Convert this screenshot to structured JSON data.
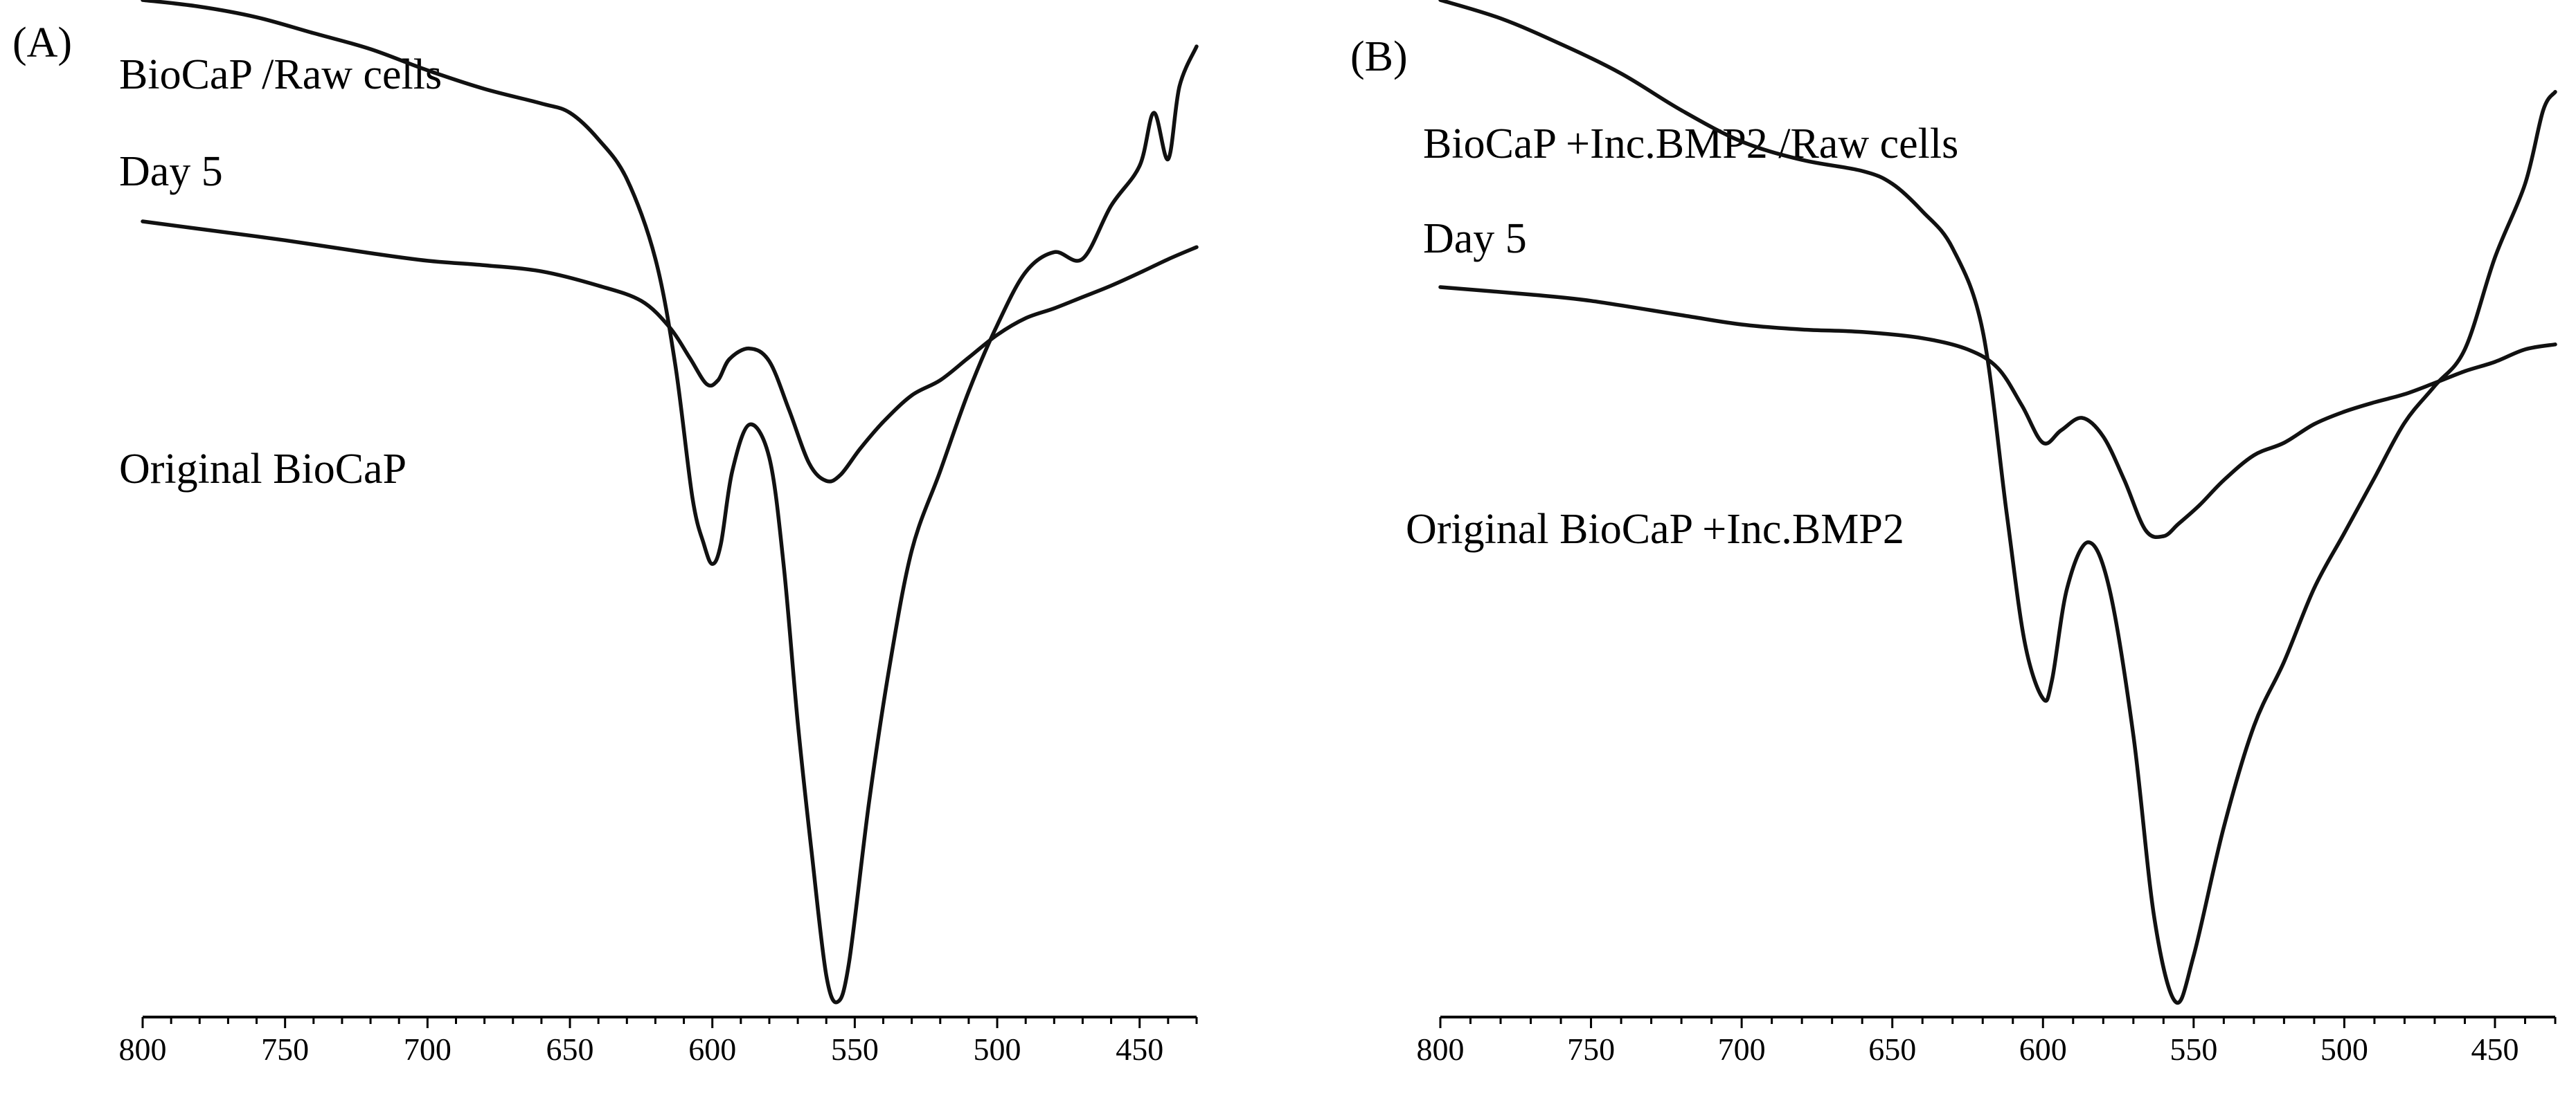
{
  "chart_data": [
    {
      "panel": "(A)",
      "type": "line",
      "xlim": [
        800,
        430
      ],
      "xticks": [
        800,
        750,
        700,
        650,
        600,
        550,
        500,
        450
      ],
      "xtick_labels": [
        "800",
        "750",
        "700",
        "650",
        "600",
        "550",
        "500",
        "450"
      ],
      "grid": false,
      "series": [
        {
          "name": "BioCaP /Raw cells",
          "subtitle": "Day 5",
          "x": [
            800,
            780,
            750,
            720,
            700,
            680,
            660,
            640,
            625,
            615,
            608,
            602,
            598,
            594,
            587,
            580,
            573,
            566,
            560,
            555,
            548,
            540,
            530,
            520,
            510,
            500,
            490,
            480,
            470,
            460,
            450,
            440,
            430
          ],
          "y": [
            0.84,
            0.83,
            0.815,
            0.798,
            0.788,
            0.782,
            0.774,
            0.755,
            0.735,
            0.7,
            0.66,
            0.625,
            0.63,
            0.658,
            0.672,
            0.655,
            0.59,
            0.52,
            0.497,
            0.505,
            0.54,
            0.575,
            0.61,
            0.63,
            0.66,
            0.69,
            0.712,
            0.725,
            0.74,
            0.755,
            0.772,
            0.79,
            0.806
          ]
        },
        {
          "name": "Original BioCaP",
          "x": [
            800,
            780,
            760,
            740,
            720,
            700,
            680,
            660,
            650,
            640,
            630,
            620,
            613,
            607,
            603,
            600,
            597,
            593,
            587,
            580,
            575,
            570,
            565,
            560,
            556,
            552,
            545,
            538,
            530,
            520,
            510,
            500,
            490,
            480,
            470,
            460,
            450,
            445,
            440,
            436,
            430
          ],
          "y": [
            0.795,
            0.79,
            0.782,
            0.77,
            0.758,
            0.742,
            0.728,
            0.717,
            0.71,
            0.69,
            0.66,
            0.6,
            0.52,
            0.42,
            0.385,
            0.37,
            0.385,
            0.44,
            0.475,
            0.45,
            0.37,
            0.25,
            0.15,
            0.06,
            0.04,
            0.07,
            0.19,
            0.29,
            0.38,
            0.44,
            0.5,
            0.55,
            0.59,
            0.605,
            0.6,
            0.64,
            0.67,
            0.71,
            0.675,
            0.73,
            0.76
          ]
        }
      ]
    },
    {
      "panel": "(B)",
      "type": "line",
      "xlim": [
        800,
        430
      ],
      "xticks": [
        800,
        750,
        700,
        650,
        600,
        550,
        500,
        450
      ],
      "xtick_labels": [
        "800",
        "750",
        "700",
        "650",
        "600",
        "550",
        "500",
        "450"
      ],
      "grid": false,
      "series": [
        {
          "name": "BioCaP +Inc.BMP2 /Raw cells",
          "subtitle": "Day 5",
          "x": [
            800,
            770,
            750,
            720,
            700,
            680,
            660,
            640,
            625,
            615,
            607,
            600,
            594,
            587,
            580,
            573,
            566,
            560,
            555,
            548,
            540,
            530,
            520,
            510,
            500,
            490,
            480,
            470,
            460,
            450,
            440,
            430
          ],
          "y": [
            0.75,
            0.738,
            0.728,
            0.705,
            0.69,
            0.682,
            0.678,
            0.668,
            0.65,
            0.62,
            0.56,
            0.5,
            0.52,
            0.54,
            0.51,
            0.44,
            0.36,
            0.35,
            0.37,
            0.4,
            0.44,
            0.48,
            0.5,
            0.53,
            0.55,
            0.565,
            0.578,
            0.596,
            0.615,
            0.63,
            0.65,
            0.658
          ]
        },
        {
          "name": "Original BioCaP +Inc.BMP2",
          "x": [
            800,
            780,
            760,
            740,
            720,
            700,
            680,
            660,
            650,
            640,
            630,
            620,
            612,
            606,
            600,
            597,
            592,
            585,
            578,
            570,
            563,
            556,
            550,
            540,
            530,
            520,
            510,
            500,
            490,
            480,
            470,
            460,
            450,
            440,
            434,
            430
          ],
          "y": [
            0.46,
            0.45,
            0.436,
            0.42,
            0.4,
            0.383,
            0.373,
            0.367,
            0.36,
            0.345,
            0.325,
            0.28,
            0.18,
            0.11,
            0.08,
            0.09,
            0.14,
            0.165,
            0.14,
            0.06,
            -0.04,
            -0.085,
            -0.06,
            0.01,
            0.065,
            0.1,
            0.14,
            0.17,
            0.2,
            0.23,
            0.25,
            0.27,
            0.32,
            0.36,
            0.4,
            0.41
          ]
        }
      ]
    }
  ]
}
